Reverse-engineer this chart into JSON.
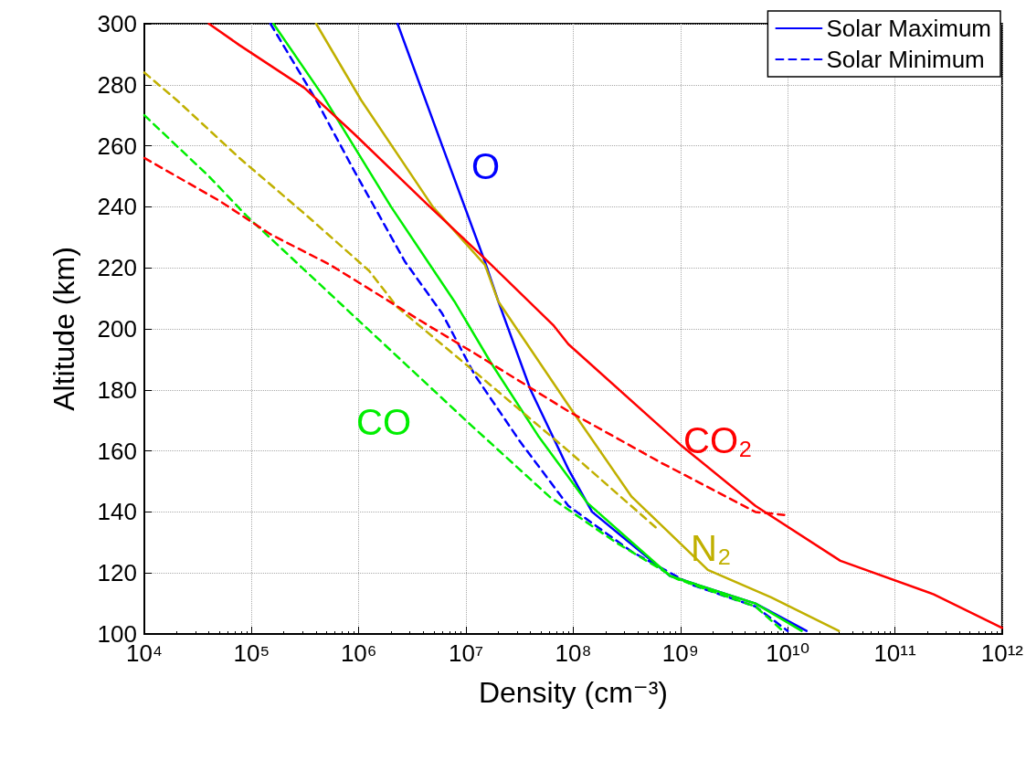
{
  "chart_data": {
    "type": "line",
    "xlabel": "Density (cm⁻³)",
    "ylabel": "Altitude (km)",
    "log": "x",
    "grid": true,
    "legend": "top right",
    "marker": "none",
    "xlim": [
      10000.0,
      1000000000000.0
    ],
    "xticks": [
      {
        "value": 10000.0,
        "label": "10⁴"
      },
      {
        "value": 100000.0,
        "label": "10⁵"
      },
      {
        "value": 1000000.0,
        "label": "10⁶"
      },
      {
        "value": 10000000.0,
        "label": "10⁷"
      },
      {
        "value": 100000000.0,
        "label": "10⁸"
      },
      {
        "value": 1000000000.0,
        "label": "10⁹"
      },
      {
        "value": 10000000000.0,
        "label": "10¹⁰"
      },
      {
        "value": 100000000000.0,
        "label": "10¹¹"
      },
      {
        "value": 1000000000000.0,
        "label": "10¹²"
      }
    ],
    "ylim": [
      100,
      300
    ],
    "yticks": [
      100,
      120,
      140,
      160,
      180,
      200,
      220,
      240,
      260,
      280,
      300
    ],
    "series": [
      {
        "name": "Solar Maximum",
        "color": "#0000ff",
        "line_style": "solid",
        "x": [
          2300000.0,
          6000000.0,
          15000000.0,
          20000000.0,
          40000000.0,
          90000000.0,
          150000000.0,
          800000000.0,
          5000000000.0,
          15000000000.0
        ],
        "values": [
          300,
          260,
          222,
          209,
          180,
          154,
          140,
          119,
          110,
          101
        ]
      },
      {
        "name": "Solar Minimum",
        "color": "#0000ff",
        "line_style": "dashed",
        "x": [
          150000.0,
          400000.0,
          900000.0,
          2700000.0,
          6000000.0,
          12000000.0,
          32000000.0,
          90000000.0,
          350000000.0,
          1300000000.0,
          5000000000.0,
          10000000000.0
        ],
        "values": [
          300,
          275,
          252,
          222,
          205,
          185,
          163,
          142,
          127,
          116,
          109,
          101
        ]
      },
      {
        "color": "#00ee00",
        "line_style": "solid",
        "x": [
          160000.0,
          470000.0,
          2000000.0,
          7800000.0,
          17000000.0,
          47000000.0,
          135000000.0,
          800000000.0,
          5000000000.0,
          13500000000.0
        ],
        "values": [
          300,
          276,
          240,
          209,
          189,
          165,
          143,
          119,
          110,
          101
        ]
      },
      {
        "color": "#00ee00",
        "line_style": "dashed",
        "x": [
          10000.0,
          40000.0,
          90000.0,
          850000.0,
          10700000.0,
          60000000.0,
          250000000.0,
          930000000.0,
          5000000000.0,
          9000000000.0
        ],
        "values": [
          270,
          250,
          237,
          205,
          169,
          145,
          130,
          118,
          109,
          101
        ]
      },
      {
        "color": "#c0b000",
        "line_style": "solid",
        "x": [
          400000.0,
          1050000.0,
          4900000.0,
          15000000.0,
          20000000.0,
          90000000.0,
          350000000.0,
          1800000000.0,
          7000000000.0,
          30000000000.0
        ],
        "values": [
          300,
          275,
          240,
          221,
          209,
          175,
          145,
          121,
          112,
          101
        ]
      },
      {
        "color": "#c0b000",
        "line_style": "dashed",
        "x": [
          10000.0,
          20000.0,
          77000.0,
          330000.0,
          1250000.0,
          2300000.0,
          12000000.0,
          90000000.0,
          630000000.0
        ],
        "values": [
          284,
          275,
          256,
          237,
          219,
          207,
          186,
          160,
          134
        ]
      },
      {
        "color": "#ff0000",
        "line_style": "solid",
        "x": [
          40000.0,
          77000.0,
          310000.0,
          900000.0,
          4300000.0,
          15000000.0,
          66000000.0,
          90000000.0,
          1000000000.0,
          5000000000.0,
          31000000000.0,
          230000000000.0,
          1000000000000.0
        ],
        "values": [
          300,
          293,
          279,
          264,
          241,
          223,
          201,
          195,
          162,
          142,
          124,
          113,
          102
        ]
      },
      {
        "color": "#ff0000",
        "line_style": "dashed",
        "x": [
          10000.0,
          50000.0,
          150000.0,
          540000.0,
          4500000.0,
          12000000.0,
          90000000.0,
          670000000.0,
          5000000000.0,
          9300000000.0
        ],
        "values": [
          256,
          242,
          231,
          221,
          201,
          192,
          173,
          156,
          140,
          139
        ]
      }
    ],
    "annotations": [
      "O",
      "CO",
      "CO₂",
      "N₂"
    ]
  }
}
